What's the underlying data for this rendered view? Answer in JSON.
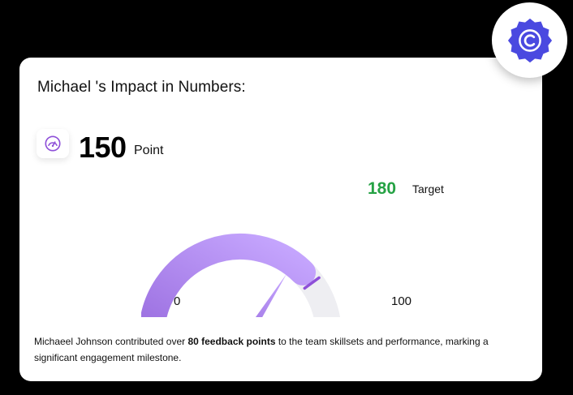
{
  "title": "Michael 's Impact in Numbers:",
  "score": {
    "value": "150",
    "unit": "Point",
    "icon": "speedometer-icon"
  },
  "gauge": {
    "min_label": "0",
    "max_label": "100",
    "target_value": "180",
    "target_label": "Target",
    "fill_fraction": 0.75,
    "target_fraction": 0.8,
    "needle_fraction": 0.68,
    "fill_color_start": "#9b6fe0",
    "fill_color_end": "#c7a8ff",
    "track_color": "#eeeef2",
    "target_color": "#25a244",
    "target_marker_color": "#8e4fd8"
  },
  "description": {
    "prefix": "Michaeel Johnson contributed over ",
    "highlight": "80 feedback points",
    "suffix": " to the team skillsets and performance, marking a significant engagement milestone."
  },
  "badge": {
    "icon": "copyright-badge-icon",
    "color": "#4a49e0"
  }
}
